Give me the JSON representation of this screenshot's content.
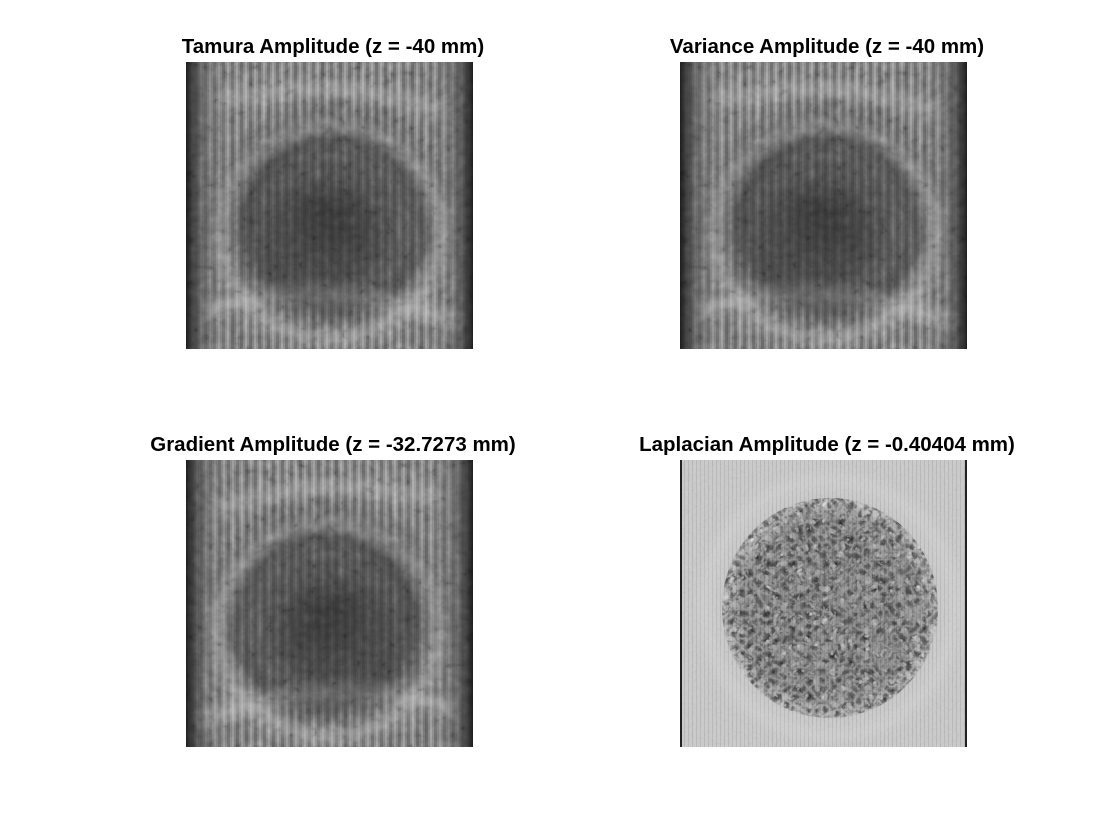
{
  "figure": {
    "panels": [
      {
        "id": "tamura",
        "title": "Tamura Amplitude (z = -40 mm)",
        "style": "blurred"
      },
      {
        "id": "variance",
        "title": "Variance Amplitude (z = -40 mm)",
        "style": "blurred"
      },
      {
        "id": "gradient",
        "title": "Gradient Amplitude (z = -32.7273 mm)",
        "style": "blurred"
      },
      {
        "id": "laplacian",
        "title": "Laplacian Amplitude (z = -0.40404 mm)",
        "style": "focused"
      }
    ],
    "colormap": "gray"
  }
}
